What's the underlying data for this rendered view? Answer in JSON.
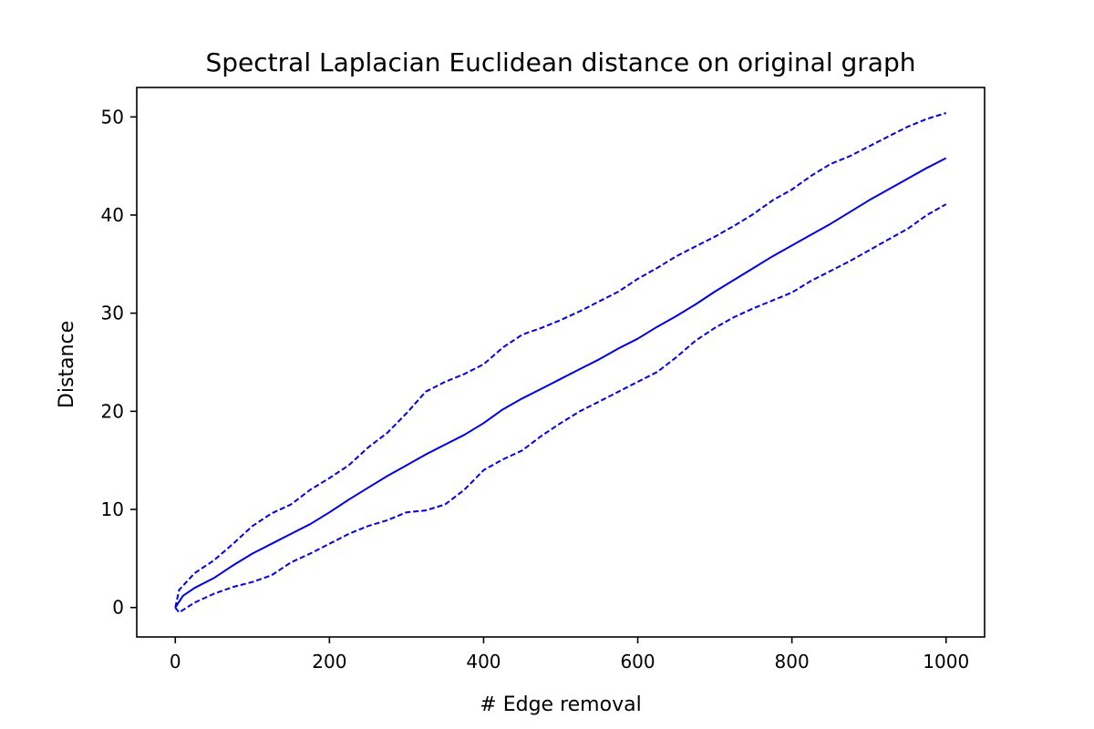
{
  "colors": {
    "line": "#0000ee",
    "axes": "#000000",
    "background": "#ffffff"
  },
  "chart_data": {
    "type": "line",
    "title": "Spectral Laplacian Euclidean distance on original graph",
    "xlabel": "# Edge removal",
    "ylabel": "Distance",
    "xlim": [
      -50,
      1050
    ],
    "ylim": [
      -3,
      53
    ],
    "xticks": [
      0,
      200,
      400,
      600,
      800,
      1000
    ],
    "yticks": [
      0,
      10,
      20,
      30,
      40,
      50
    ],
    "grid": false,
    "legend": "none",
    "series": [
      {
        "style": "solid",
        "x": [
          0,
          10,
          25,
          50,
          75,
          100,
          125,
          150,
          175,
          200,
          225,
          250,
          275,
          300,
          325,
          350,
          375,
          400,
          425,
          450,
          475,
          500,
          525,
          550,
          575,
          600,
          625,
          650,
          675,
          700,
          725,
          750,
          775,
          800,
          825,
          850,
          875,
          900,
          925,
          950,
          975,
          1000
        ],
        "y": [
          0.0,
          1.2,
          2.0,
          3.0,
          4.3,
          5.5,
          6.5,
          7.5,
          8.5,
          9.7,
          11.0,
          12.2,
          13.4,
          14.5,
          15.6,
          16.6,
          17.6,
          18.8,
          20.2,
          21.3,
          22.3,
          23.3,
          24.3,
          25.3,
          26.4,
          27.4,
          28.6,
          29.7,
          30.9,
          32.2,
          33.4,
          34.6,
          35.8,
          36.9,
          38.0,
          39.1,
          40.3,
          41.5,
          42.6,
          43.7,
          44.8,
          45.8
        ]
      },
      {
        "style": "dashed",
        "x": [
          0,
          5,
          25,
          50,
          75,
          100,
          125,
          150,
          175,
          200,
          225,
          250,
          275,
          300,
          325,
          350,
          375,
          400,
          425,
          450,
          475,
          500,
          525,
          550,
          575,
          600,
          625,
          650,
          675,
          700,
          725,
          750,
          775,
          800,
          825,
          850,
          875,
          900,
          925,
          950,
          975,
          1000
        ],
        "y": [
          0.0,
          1.8,
          3.5,
          4.8,
          6.5,
          8.3,
          9.6,
          10.5,
          12.0,
          13.2,
          14.5,
          16.3,
          17.8,
          19.8,
          22.0,
          23.0,
          23.8,
          24.8,
          26.5,
          27.8,
          28.5,
          29.3,
          30.2,
          31.2,
          32.2,
          33.5,
          34.6,
          35.8,
          36.8,
          37.8,
          38.9,
          40.1,
          41.5,
          42.6,
          44.0,
          45.2,
          46.0,
          47.0,
          48.0,
          49.0,
          49.8,
          50.4
        ]
      },
      {
        "style": "dashed",
        "x": [
          0,
          5,
          25,
          50,
          75,
          100,
          125,
          150,
          175,
          200,
          225,
          250,
          275,
          300,
          325,
          350,
          375,
          400,
          425,
          450,
          475,
          500,
          525,
          550,
          575,
          600,
          625,
          650,
          675,
          700,
          725,
          750,
          775,
          800,
          825,
          850,
          875,
          900,
          925,
          950,
          975,
          1000
        ],
        "y": [
          0.0,
          -0.5,
          0.5,
          1.4,
          2.1,
          2.6,
          3.3,
          4.6,
          5.5,
          6.5,
          7.5,
          8.3,
          8.9,
          9.7,
          9.9,
          10.5,
          12.0,
          14.0,
          15.1,
          16.0,
          17.5,
          18.8,
          20.0,
          21.0,
          22.0,
          23.0,
          24.0,
          25.5,
          27.2,
          28.5,
          29.6,
          30.5,
          31.3,
          32.1,
          33.3,
          34.3,
          35.3,
          36.4,
          37.5,
          38.6,
          40.0,
          41.1
        ]
      }
    ]
  }
}
